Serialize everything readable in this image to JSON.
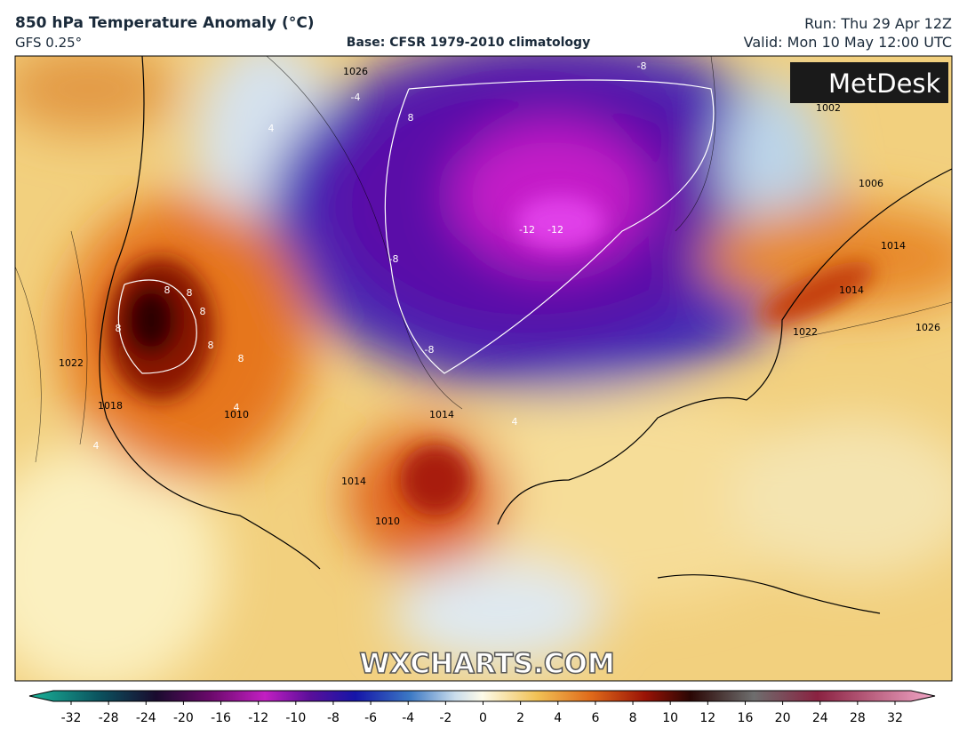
{
  "header": {
    "title": "850 hPa Temperature Anomaly (°C)",
    "model": "GFS 0.25°",
    "base": "Base: CFSR 1979-2010 climatology",
    "run": "Run: Thu 29 Apr 12Z",
    "valid": "Valid: Mon 10 May 12:00 UTC"
  },
  "logo": "MetDesk",
  "watermark": "WXCHARTS.COM",
  "map": {
    "labels": [
      "-8",
      "8",
      "-4",
      "4",
      "8",
      "-12",
      "-12",
      "-8",
      "8",
      "8",
      "8",
      "8",
      "8",
      "-8",
      "4",
      "4",
      "4",
      "1002",
      "1006",
      "1014",
      "1014",
      "1022",
      "1026",
      "1026",
      "1022",
      "1018",
      "1014",
      "1010",
      "1014",
      "1010"
    ]
  },
  "colorbar": {
    "ticks": [
      -32,
      -28,
      -24,
      -20,
      -16,
      -12,
      -10,
      -8,
      -6,
      -4,
      -2,
      0,
      2,
      4,
      6,
      8,
      10,
      12,
      16,
      20,
      24,
      28,
      32
    ]
  }
}
